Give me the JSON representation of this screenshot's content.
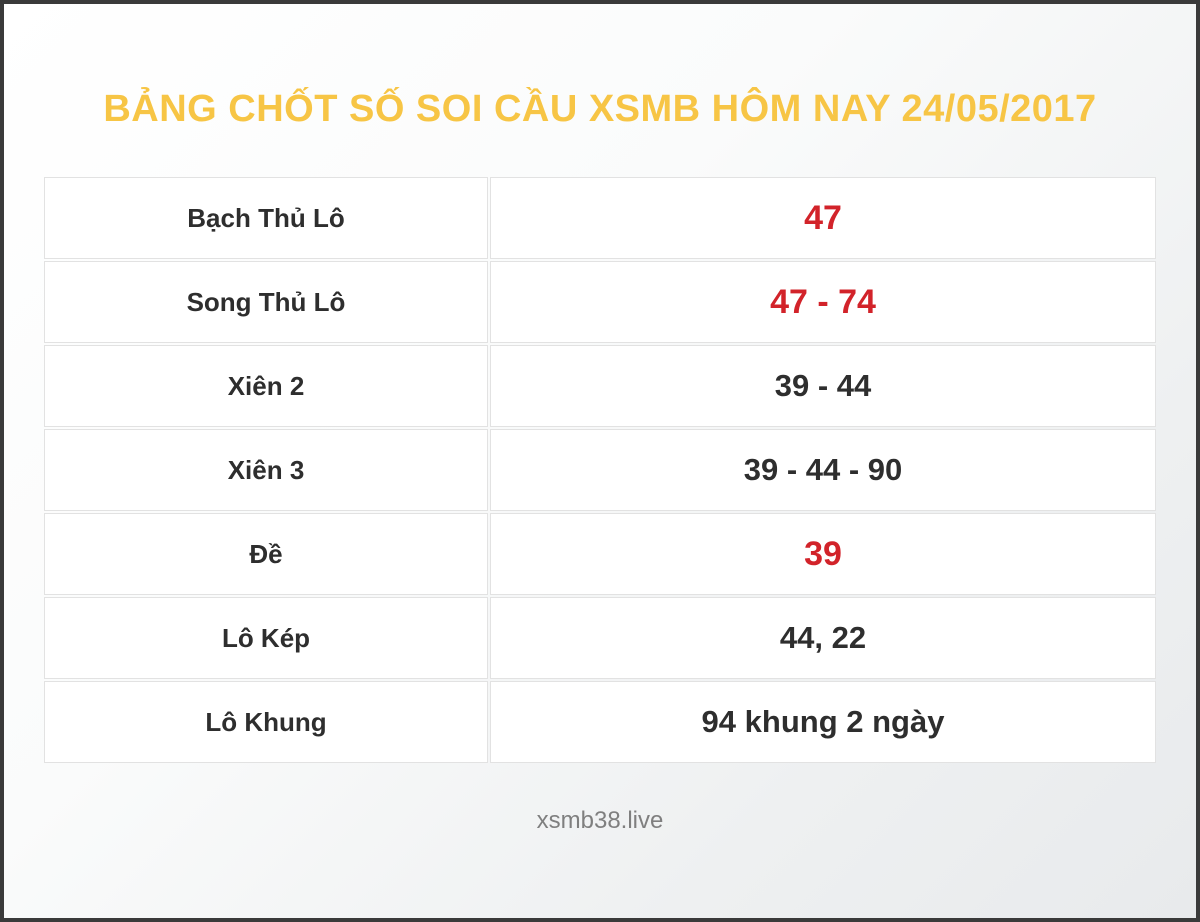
{
  "header": {
    "title": "BẢNG CHỐT SỐ SOI CẦU XSMB HÔM NAY 24/05/2017"
  },
  "table": {
    "rows": [
      {
        "label": "Bạch Thủ Lô",
        "value": "47",
        "highlight": true
      },
      {
        "label": "Song Thủ Lô",
        "value": "47 - 74",
        "highlight": true
      },
      {
        "label": "Xiên 2",
        "value": "39 - 44",
        "highlight": false
      },
      {
        "label": "Xiên 3",
        "value": "39 - 44 - 90",
        "highlight": false
      },
      {
        "label": "Đề",
        "value": "39",
        "highlight": true
      },
      {
        "label": "Lô Kép",
        "value": "44, 22",
        "highlight": false
      },
      {
        "label": "Lô Khung",
        "value": "94 khung 2 ngày",
        "highlight": false
      }
    ]
  },
  "footer": {
    "site": "xsmb38.live"
  },
  "colors": {
    "title": "#f7c545",
    "highlight_value": "#d2232a",
    "text": "#2e2e2e",
    "frame_border": "#3a3a3a",
    "cell_border": "#e2e2e2",
    "footer_text": "#7f7f7f"
  }
}
